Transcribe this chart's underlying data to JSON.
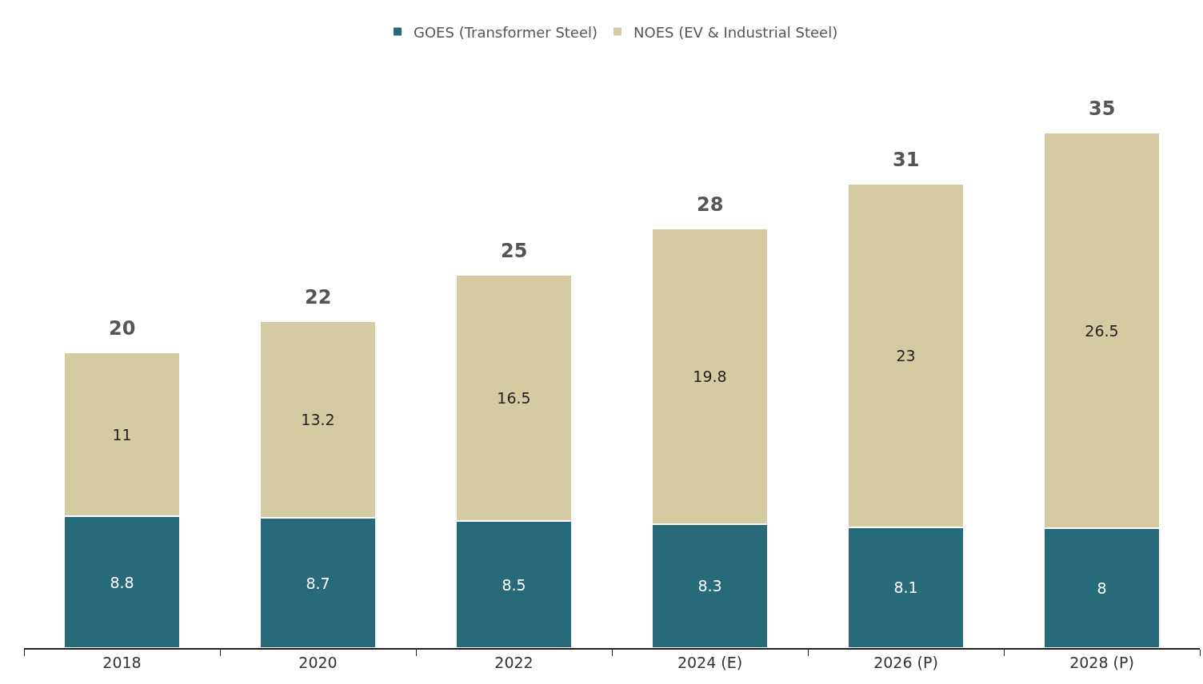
{
  "chart_data": {
    "type": "bar",
    "stacked": true,
    "data_labels": true,
    "legend": "top",
    "categories": [
      "2018",
      "2020",
      "2022",
      "2024 (E)",
      "2026 (P)",
      "2028 (P)"
    ],
    "series": [
      {
        "name": "GOES (Transformer Steel)",
        "color": "#276a7a",
        "values": [
          8.8,
          8.7,
          8.5,
          8.3,
          8.1,
          8
        ]
      },
      {
        "name": "NOES (EV & Industrial Steel)",
        "color": "#d5cba2",
        "values": [
          11,
          13.2,
          16.5,
          19.8,
          23,
          26.5
        ]
      }
    ],
    "totals": [
      "20",
      "22",
      "25",
      "28",
      "31",
      "35"
    ]
  }
}
